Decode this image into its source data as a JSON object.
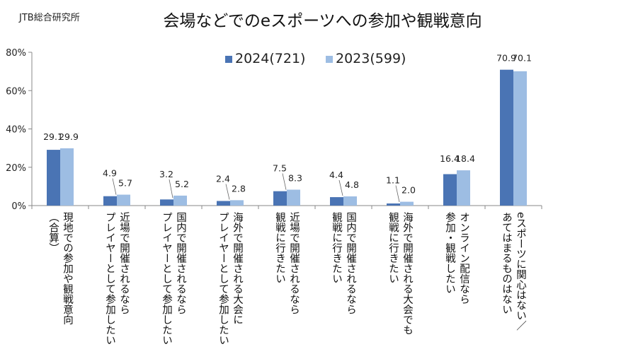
{
  "source": "JTB総合研究所",
  "chart_data": {
    "type": "bar",
    "title": "会場などでのeスポーツへの参加や観戦意向",
    "ylabel": "",
    "ylim": [
      0,
      80
    ],
    "yticks": [
      "0%",
      "20%",
      "40%",
      "60%",
      "80%"
    ],
    "legend_position": "top-center",
    "categories": [
      "現地での参加や観戦意向\n（合算）",
      "近場で開催されるなら\nプレイヤーとして参加したい",
      "国内で開催されるなら\nプレイヤーとして参加したい",
      "海外で開催される大会に\nプレイヤーとして参加したい",
      "近場で開催されるなら\n観戦に行きたい",
      "国内で開催されるなら\n観戦に行きたい",
      "海外で開催される大会でも\n観戦に行きたい",
      "オンライン配信なら\n参加・観戦したい",
      "eスポーツに関心はない／\nあてはまるものはない"
    ],
    "series": [
      {
        "name": "2024(721)",
        "color": "#4a74b4",
        "values": [
          29.1,
          4.9,
          3.2,
          2.4,
          7.5,
          4.4,
          1.1,
          16.4,
          70.9
        ],
        "labels": [
          "29.1",
          "4.9",
          "3.2",
          "2.4",
          "7.5",
          "4.4",
          "1.1",
          "16.4",
          "70.9"
        ]
      },
      {
        "name": "2023(599)",
        "color": "#9dbde3",
        "values": [
          29.9,
          5.7,
          5.2,
          2.8,
          8.3,
          4.8,
          2.0,
          18.4,
          70.1
        ],
        "labels": [
          "29.9",
          "5.7",
          "5.2",
          "2.8",
          "8.3",
          "4.8",
          "2.0",
          "18.4",
          "70.1"
        ]
      }
    ]
  }
}
